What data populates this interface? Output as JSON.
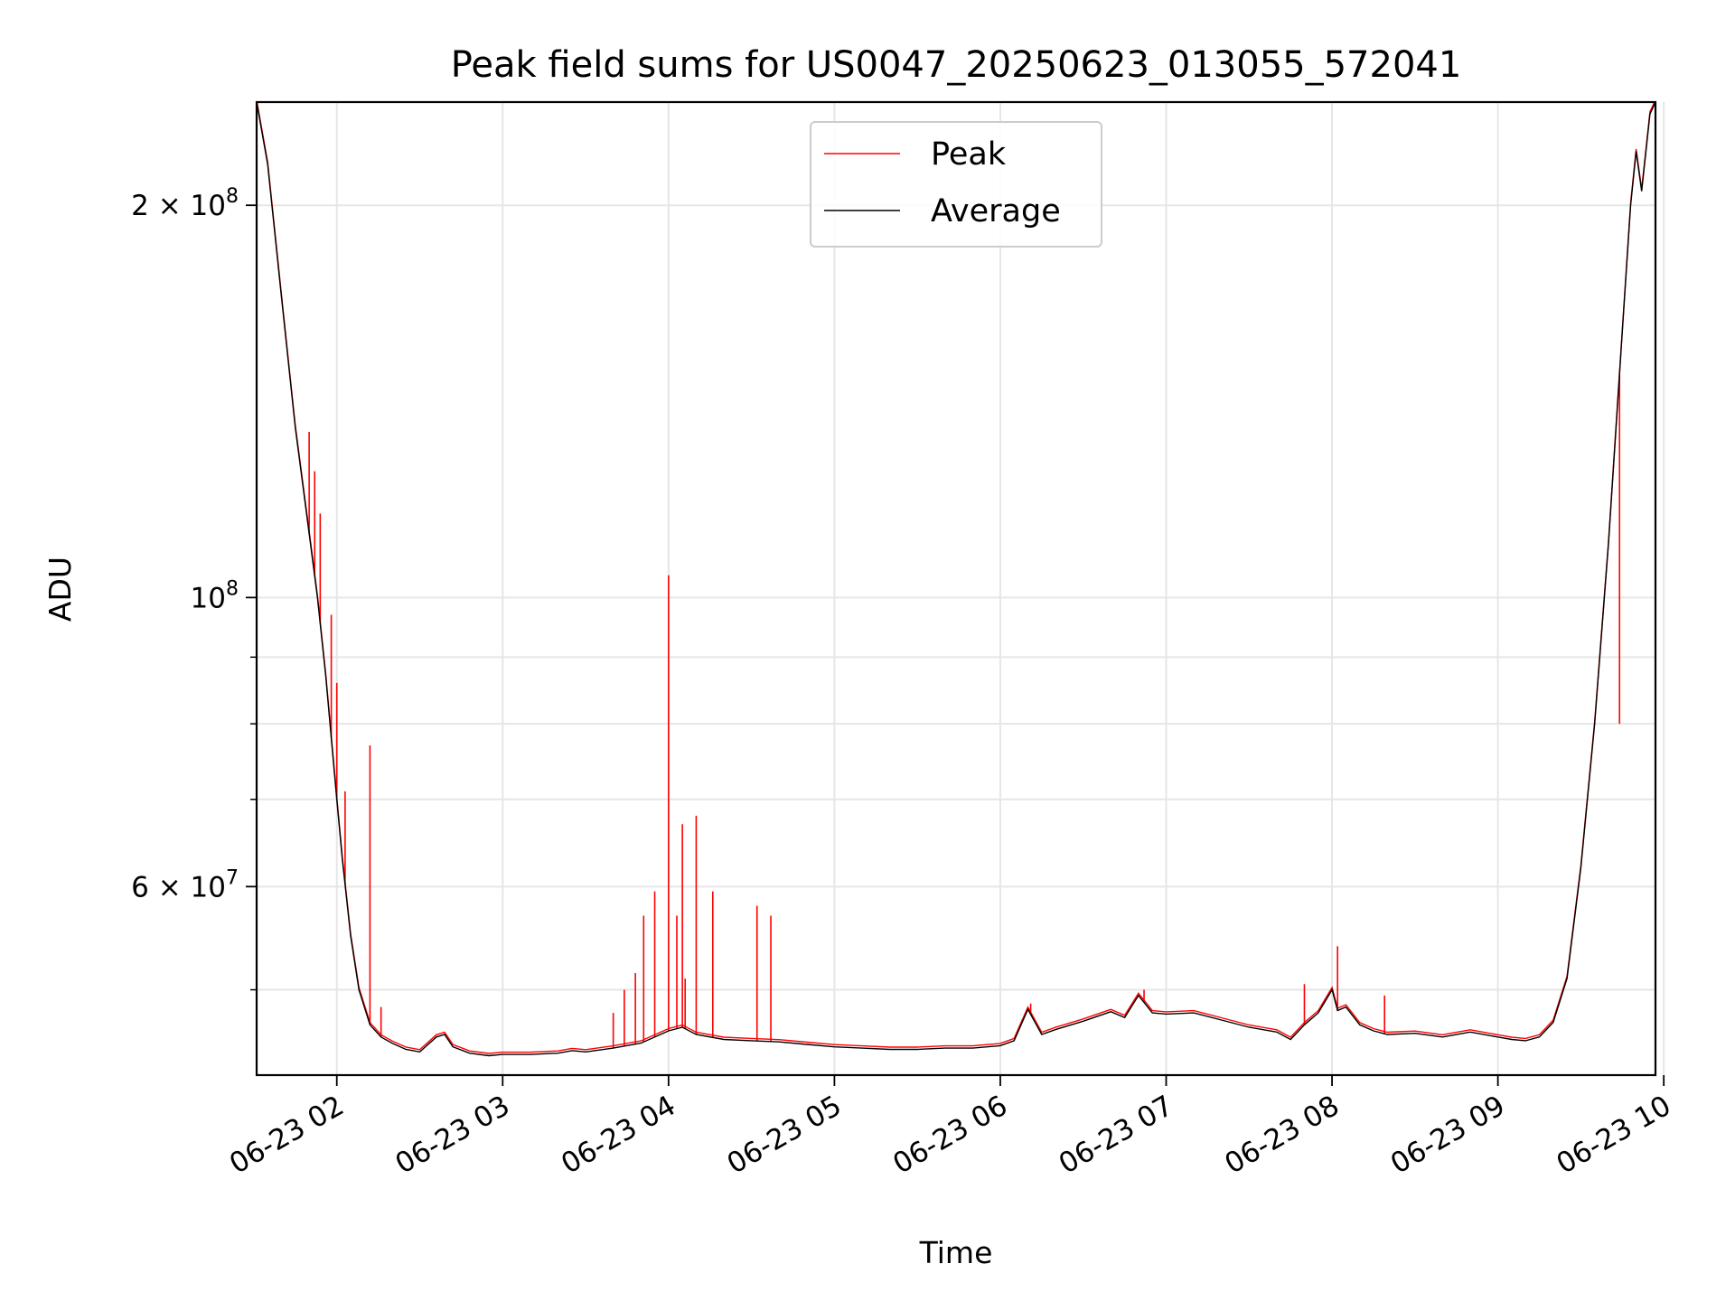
{
  "chart_data": {
    "type": "line",
    "title": "Peak field sums for US0047_20250623_013055_572041",
    "xlabel": "Time",
    "ylabel": "ADU",
    "y_scale": "log",
    "ylim": [
      43000000,
      240000000
    ],
    "xlim": [
      "2025-06-23 01:31",
      "2025-06-23 09:57"
    ],
    "grid": true,
    "legend_position": "top-center",
    "x_ticks": [
      "06-23 02",
      "06-23 03",
      "06-23 04",
      "06-23 05",
      "06-23 06",
      "06-23 07",
      "06-23 08",
      "06-23 09",
      "06-23 10"
    ],
    "x_tick_times": [
      "2025-06-23 02:00",
      "2025-06-23 03:00",
      "2025-06-23 04:00",
      "2025-06-23 05:00",
      "2025-06-23 06:00",
      "2025-06-23 07:00",
      "2025-06-23 08:00",
      "2025-06-23 09:00",
      "2025-06-23 10:00"
    ],
    "y_major_ticks": [
      {
        "label_base": "2 × 10",
        "label_exp": "8",
        "value": 200000000
      },
      {
        "label_base": "10",
        "label_exp": "8",
        "value": 100000000
      },
      {
        "label_base": "6 × 10",
        "label_exp": "7",
        "value": 60000000
      }
    ],
    "y_minor_ticks": [
      50000000,
      70000000,
      80000000,
      90000000
    ],
    "series": [
      {
        "name": "Average",
        "color": "#000000",
        "x": [
          "2025-06-23 01:31",
          "2025-06-23 01:35",
          "2025-06-23 01:40",
          "2025-06-23 01:45",
          "2025-06-23 01:50",
          "2025-06-23 01:53",
          "2025-06-23 01:56",
          "2025-06-23 01:58",
          "2025-06-23 02:00",
          "2025-06-23 02:02",
          "2025-06-23 02:05",
          "2025-06-23 02:08",
          "2025-06-23 02:12",
          "2025-06-23 02:16",
          "2025-06-23 02:20",
          "2025-06-23 02:25",
          "2025-06-23 02:30",
          "2025-06-23 02:36",
          "2025-06-23 02:39",
          "2025-06-23 02:42",
          "2025-06-23 02:48",
          "2025-06-23 02:55",
          "2025-06-23 03:00",
          "2025-06-23 03:10",
          "2025-06-23 03:20",
          "2025-06-23 03:25",
          "2025-06-23 03:30",
          "2025-06-23 03:40",
          "2025-06-23 03:50",
          "2025-06-23 04:00",
          "2025-06-23 04:05",
          "2025-06-23 04:10",
          "2025-06-23 04:20",
          "2025-06-23 04:30",
          "2025-06-23 04:40",
          "2025-06-23 04:50",
          "2025-06-23 05:00",
          "2025-06-23 05:10",
          "2025-06-23 05:20",
          "2025-06-23 05:30",
          "2025-06-23 05:40",
          "2025-06-23 05:50",
          "2025-06-23 06:00",
          "2025-06-23 06:05",
          "2025-06-23 06:10",
          "2025-06-23 06:15",
          "2025-06-23 06:20",
          "2025-06-23 06:30",
          "2025-06-23 06:40",
          "2025-06-23 06:45",
          "2025-06-23 06:50",
          "2025-06-23 06:55",
          "2025-06-23 07:00",
          "2025-06-23 07:10",
          "2025-06-23 07:20",
          "2025-06-23 07:30",
          "2025-06-23 07:40",
          "2025-06-23 07:45",
          "2025-06-23 07:50",
          "2025-06-23 07:55",
          "2025-06-23 08:00",
          "2025-06-23 08:02",
          "2025-06-23 08:05",
          "2025-06-23 08:10",
          "2025-06-23 08:15",
          "2025-06-23 08:20",
          "2025-06-23 08:30",
          "2025-06-23 08:40",
          "2025-06-23 08:50",
          "2025-06-23 09:00",
          "2025-06-23 09:05",
          "2025-06-23 09:10",
          "2025-06-23 09:15",
          "2025-06-23 09:20",
          "2025-06-23 09:25",
          "2025-06-23 09:30",
          "2025-06-23 09:35",
          "2025-06-23 09:40",
          "2025-06-23 09:45",
          "2025-06-23 09:48",
          "2025-06-23 09:50",
          "2025-06-23 09:52",
          "2025-06-23 09:55",
          "2025-06-23 09:57"
        ],
        "values": [
          240000000,
          215000000,
          170000000,
          135000000,
          112000000,
          100000000,
          87000000,
          78000000,
          70000000,
          63000000,
          55000000,
          50000000,
          47000000,
          46000000,
          45500000,
          45000000,
          44800000,
          46000000,
          46200000,
          45200000,
          44700000,
          44500000,
          44600000,
          44600000,
          44700000,
          44900000,
          44800000,
          45100000,
          45500000,
          46500000,
          46800000,
          46200000,
          45800000,
          45700000,
          45600000,
          45400000,
          45200000,
          45100000,
          45000000,
          45000000,
          45100000,
          45100000,
          45300000,
          45700000,
          48300000,
          46200000,
          46600000,
          47300000,
          48100000,
          47600000,
          49500000,
          48000000,
          47900000,
          48000000,
          47400000,
          46800000,
          46400000,
          45800000,
          47000000,
          48000000,
          50000000,
          48200000,
          48500000,
          47000000,
          46500000,
          46200000,
          46300000,
          46000000,
          46400000,
          46000000,
          45800000,
          45700000,
          46000000,
          47200000,
          51000000,
          62000000,
          80000000,
          110000000,
          160000000,
          200000000,
          220000000,
          205000000,
          235000000,
          240000000
        ]
      },
      {
        "name": "Peak",
        "color": "#ff0000",
        "spikes": [
          {
            "t": "2025-06-23 01:50",
            "value": 134000000
          },
          {
            "t": "2025-06-23 01:52",
            "value": 125000000
          },
          {
            "t": "2025-06-23 01:54",
            "value": 116000000
          },
          {
            "t": "2025-06-23 01:58",
            "value": 97000000
          },
          {
            "t": "2025-06-23 02:00",
            "value": 86000000
          },
          {
            "t": "2025-06-23 02:03",
            "value": 71000000
          },
          {
            "t": "2025-06-23 02:12",
            "value": 77000000
          },
          {
            "t": "2025-06-23 02:16",
            "value": 48500000
          },
          {
            "t": "2025-06-23 03:40",
            "value": 48000000
          },
          {
            "t": "2025-06-23 03:44",
            "value": 50000000
          },
          {
            "t": "2025-06-23 03:48",
            "value": 51500000
          },
          {
            "t": "2025-06-23 03:51",
            "value": 57000000
          },
          {
            "t": "2025-06-23 03:55",
            "value": 59500000
          },
          {
            "t": "2025-06-23 04:00",
            "value": 104000000
          },
          {
            "t": "2025-06-23 04:03",
            "value": 57000000
          },
          {
            "t": "2025-06-23 04:05",
            "value": 67000000
          },
          {
            "t": "2025-06-23 04:06",
            "value": 51000000
          },
          {
            "t": "2025-06-23 04:10",
            "value": 68000000
          },
          {
            "t": "2025-06-23 04:16",
            "value": 59500000
          },
          {
            "t": "2025-06-23 04:32",
            "value": 58000000
          },
          {
            "t": "2025-06-23 04:37",
            "value": 57000000
          },
          {
            "t": "2025-06-23 06:11",
            "value": 48800000
          },
          {
            "t": "2025-06-23 06:52",
            "value": 50000000
          },
          {
            "t": "2025-06-23 07:50",
            "value": 50500000
          },
          {
            "t": "2025-06-23 08:02",
            "value": 54000000
          },
          {
            "t": "2025-06-23 08:19",
            "value": 49500000
          },
          {
            "t": "2025-06-23 09:44",
            "value": 80000000
          }
        ]
      }
    ]
  }
}
